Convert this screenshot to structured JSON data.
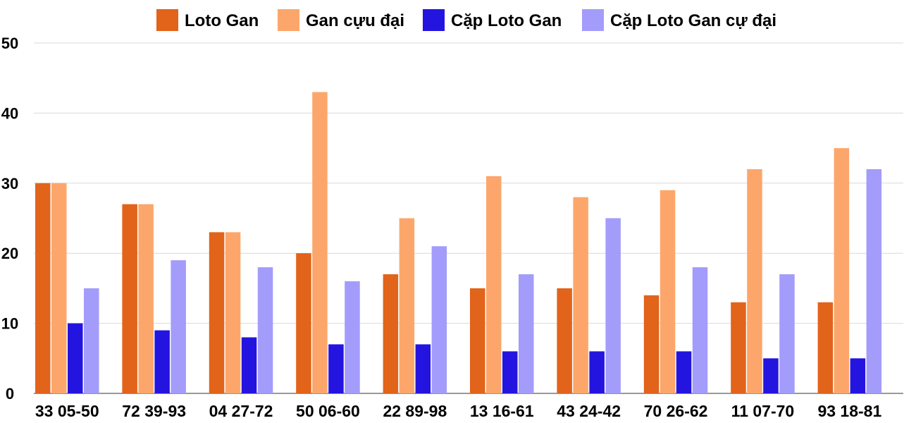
{
  "chart_data": {
    "type": "bar",
    "title": "",
    "xlabel": "",
    "ylabel": "",
    "ylim": [
      0,
      50
    ],
    "yticks": [
      0,
      10,
      20,
      30,
      40,
      50
    ],
    "grid": true,
    "legend_position": "top",
    "categories": [
      "33 05-50",
      "72 39-93",
      "04 27-72",
      "50 06-60",
      "22 89-98",
      "13 16-61",
      "43 24-42",
      "70 26-62",
      "11 07-70",
      "93 18-81"
    ],
    "series": [
      {
        "name": "Loto Gan",
        "color": "#e2631a",
        "values": [
          30,
          27,
          23,
          20,
          17,
          15,
          15,
          14,
          13,
          13
        ]
      },
      {
        "name": "Gan cựu đại",
        "color": "#fda66b",
        "values": [
          30,
          27,
          23,
          43,
          25,
          31,
          28,
          29,
          32,
          35
        ]
      },
      {
        "name": "Cặp Loto Gan",
        "color": "#2414e0",
        "values": [
          10,
          9,
          8,
          7,
          7,
          6,
          6,
          6,
          5,
          5
        ]
      },
      {
        "name": "Cặp Loto Gan cự đại",
        "color": "#a39cfb",
        "values": [
          15,
          19,
          18,
          16,
          21,
          17,
          25,
          18,
          17,
          32
        ]
      }
    ]
  }
}
